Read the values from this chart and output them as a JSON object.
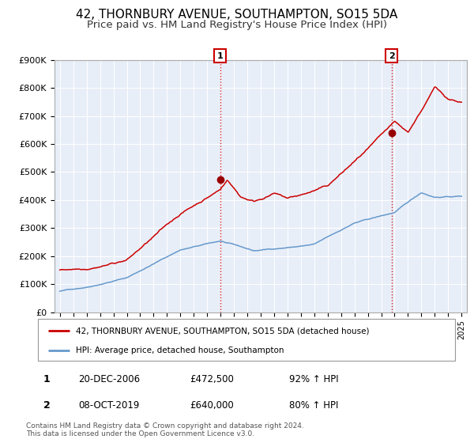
{
  "title": "42, THORNBURY AVENUE, SOUTHAMPTON, SO15 5DA",
  "subtitle": "Price paid vs. HM Land Registry's House Price Index (HPI)",
  "title_fontsize": 11,
  "subtitle_fontsize": 9.5,
  "bg_color": "#e8eef8",
  "red_color": "#cc0000",
  "blue_color": "#6699cc",
  "marker_color": "#990000",
  "sale1_x": 2006.97,
  "sale1_y": 472500,
  "sale2_x": 2019.77,
  "sale2_y": 640000,
  "legend_line1": "42, THORNBURY AVENUE, SOUTHAMPTON, SO15 5DA (detached house)",
  "legend_line2": "HPI: Average price, detached house, Southampton",
  "note1_date": "20-DEC-2006",
  "note1_price": "£472,500",
  "note1_hpi": "92% ↑ HPI",
  "note2_date": "08-OCT-2019",
  "note2_price": "£640,000",
  "note2_hpi": "80% ↑ HPI",
  "footer": "Contains HM Land Registry data © Crown copyright and database right 2024.\nThis data is licensed under the Open Government Licence v3.0.",
  "ylim": [
    0,
    900000
  ],
  "yticks": [
    0,
    100000,
    200000,
    300000,
    400000,
    500000,
    600000,
    700000,
    800000,
    900000
  ],
  "ytick_labels": [
    "£0",
    "£100K",
    "£200K",
    "£300K",
    "£400K",
    "£500K",
    "£600K",
    "£700K",
    "£800K",
    "£900K"
  ],
  "xlim_left": 1994.6,
  "xlim_right": 2025.4
}
